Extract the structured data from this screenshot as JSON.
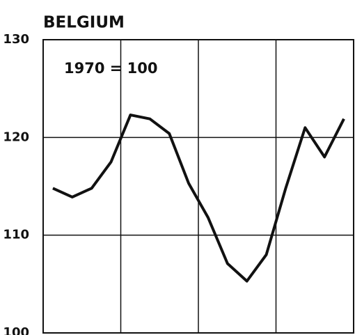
{
  "chart_data": {
    "type": "line",
    "title": "BELGIUM",
    "annotation": "1970 = 100",
    "categories": [
      null,
      null,
      null,
      null,
      null,
      null,
      null,
      null,
      null,
      null,
      null,
      null,
      null,
      null,
      null,
      null
    ],
    "series": [
      {
        "name": null,
        "color": "#111111",
        "values": [
          114.8,
          113.9,
          114.8,
          117.5,
          122.3,
          121.9,
          120.4,
          115.3,
          111.8,
          107.1,
          105.3,
          108.0,
          114.8,
          121.0,
          118.0,
          121.9
        ]
      }
    ],
    "ylim": [
      100,
      130
    ],
    "yticks": [
      100,
      110,
      120,
      130
    ],
    "grid": true
  }
}
